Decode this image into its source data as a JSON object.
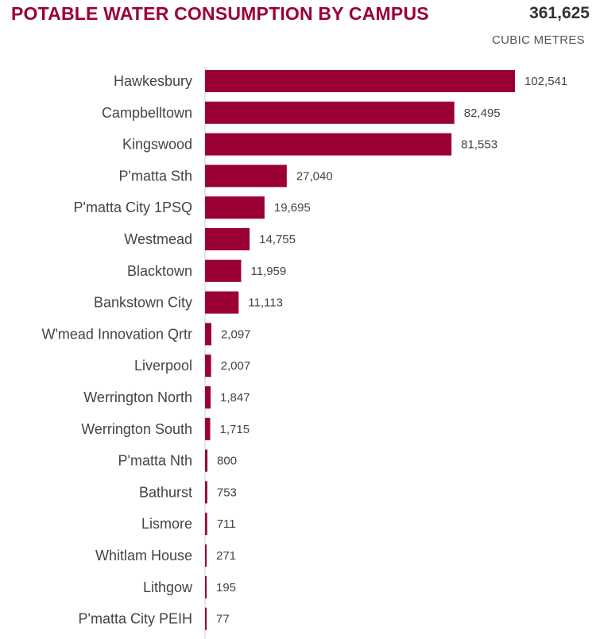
{
  "header": {
    "title": "POTABLE WATER CONSUMPTION BY CAMPUS",
    "total": "361,625",
    "unit": "CUBIC METRES"
  },
  "colors": {
    "bar": "#9b0034",
    "title": "#9b0034",
    "axis": "#cccccc"
  },
  "chart_data": {
    "type": "bar",
    "orientation": "horizontal",
    "title": "POTABLE WATER CONSUMPTION BY CAMPUS",
    "unit": "CUBIC METRES",
    "categories": [
      "Hawkesbury",
      "Campbelltown",
      "Kingswood",
      "P'matta Sth",
      "P'matta City 1PSQ",
      "Westmead",
      "Blacktown",
      "Bankstown City",
      "W'mead Innovation Qrtr",
      "Liverpool",
      "Werrington North",
      "Werrington South",
      "P'matta Nth",
      "Bathurst",
      "Lismore",
      "Whitlam House",
      "Lithgow",
      "P'matta City PEIH"
    ],
    "values": [
      102541,
      82495,
      81553,
      27040,
      19695,
      14755,
      11959,
      11113,
      2097,
      2007,
      1847,
      1715,
      800,
      753,
      711,
      271,
      195,
      77
    ],
    "value_labels": [
      "102,541",
      "82,495",
      "81,553",
      "27,040",
      "19,695",
      "14,755",
      "11,959",
      "11,113",
      "2,097",
      "2,007",
      "1,847",
      "1,715",
      "800",
      "753",
      "711",
      "271",
      "195",
      "77"
    ],
    "grid": false,
    "legend": "none"
  }
}
